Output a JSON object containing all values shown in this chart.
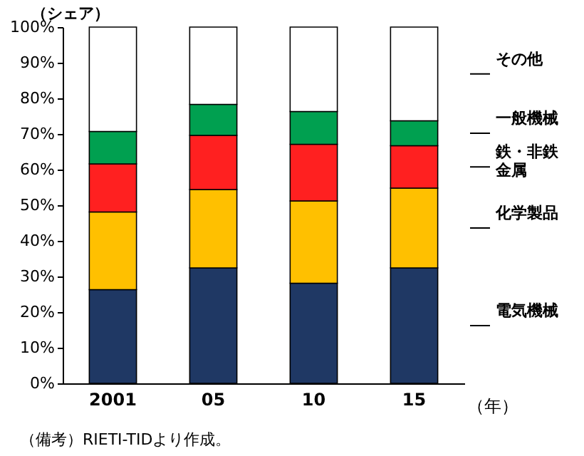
{
  "chart_data": {
    "type": "bar",
    "stacked": true,
    "ylabel": "（シェア）",
    "xlabel": "（年）",
    "categories": [
      "2001",
      "05",
      "10",
      "15"
    ],
    "series": [
      {
        "name": "電気機械",
        "color": "#1f3864",
        "values": [
          26.3,
          32.4,
          28.1,
          32.4
        ]
      },
      {
        "name": "化学製品",
        "color": "#ffc000",
        "values": [
          21.8,
          22.0,
          23.1,
          22.4
        ]
      },
      {
        "name": "鉄・非鉄金属",
        "color": "#ff2020",
        "values": [
          13.5,
          15.2,
          15.9,
          11.9
        ]
      },
      {
        "name": "一般機械",
        "color": "#00a050",
        "values": [
          9.1,
          8.7,
          9.2,
          7.0
        ]
      },
      {
        "name": "その他",
        "color": "#ffffff",
        "values": [
          29.3,
          21.7,
          23.7,
          26.3
        ]
      }
    ],
    "ylim": [
      0,
      100
    ],
    "yticks": [
      {
        "value": 0,
        "label": "0%"
      },
      {
        "value": 10,
        "label": "10%"
      },
      {
        "value": 20,
        "label": "20%"
      },
      {
        "value": 30,
        "label": "30%"
      },
      {
        "value": 40,
        "label": "40%"
      },
      {
        "value": 50,
        "label": "50%"
      },
      {
        "value": 60,
        "label": "60%"
      },
      {
        "value": 70,
        "label": "70%"
      },
      {
        "value": 80,
        "label": "80%"
      },
      {
        "value": 90,
        "label": "90%"
      },
      {
        "value": 100,
        "label": "100%"
      }
    ],
    "grid": false,
    "annotations": [
      "（備考）RIETI-TIDより作成。"
    ]
  }
}
